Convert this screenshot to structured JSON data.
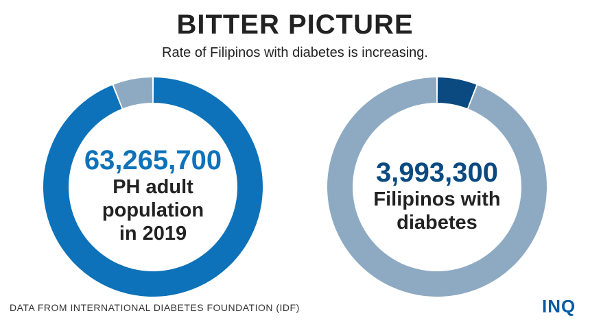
{
  "header": {
    "title": "BITTER PICTURE",
    "subtitle": "Rate of Filipinos with diabetes is increasing."
  },
  "colors": {
    "primary_blue": "#0d72b9",
    "light_steel": "#8eaac2",
    "dark_blue": "#0a4a80",
    "text_dark": "#222222"
  },
  "chart_data": [
    {
      "type": "pie",
      "variant": "donut",
      "highlight_value": "63,265,700",
      "center_label": [
        "PH adult",
        "population",
        "in 2019"
      ],
      "slices": [
        {
          "value": 63265700,
          "color": "#0d72b9"
        },
        {
          "value": 3993300,
          "color": "#8eaac2"
        }
      ]
    },
    {
      "type": "pie",
      "variant": "donut",
      "highlight_value": "3,993,300",
      "center_label": [
        "Filipinos with",
        "diabetes"
      ],
      "slices": [
        {
          "value": 3993300,
          "color": "#0a4a80"
        },
        {
          "value": 63265700,
          "color": "#8eaac2"
        }
      ]
    }
  ],
  "footer": {
    "source": "DATA FROM INTERNATIONAL DIABETES FOUNDATION (IDF)",
    "logo": "INQ"
  }
}
